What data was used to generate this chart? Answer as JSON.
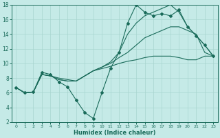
{
  "title": "",
  "xlabel": "Humidex (Indice chaleur)",
  "bg_color": "#c5eae7",
  "grid_color": "#a8d5d0",
  "line_color": "#1a6b5a",
  "xlim": [
    -0.5,
    23.5
  ],
  "ylim": [
    2,
    18
  ],
  "xticks": [
    0,
    1,
    2,
    3,
    4,
    5,
    6,
    7,
    8,
    9,
    10,
    11,
    12,
    13,
    14,
    15,
    16,
    17,
    18,
    19,
    20,
    21,
    22,
    23
  ],
  "yticks": [
    2,
    4,
    6,
    8,
    10,
    12,
    14,
    16,
    18
  ],
  "line1_x": [
    0,
    1,
    2,
    3,
    4,
    5,
    6,
    7,
    8,
    9,
    10,
    11,
    12,
    13,
    14,
    15,
    16,
    17,
    18,
    19,
    20,
    21,
    22,
    23
  ],
  "line1_y": [
    6.7,
    6.0,
    6.1,
    8.8,
    8.5,
    7.5,
    6.8,
    5.0,
    3.3,
    2.5,
    6.0,
    9.3,
    11.5,
    15.5,
    18.0,
    17.0,
    16.5,
    16.8,
    16.5,
    17.3,
    15.0,
    13.8,
    12.5,
    11.0
  ],
  "line2_x": [
    0,
    1,
    2,
    3,
    4,
    5,
    6,
    7,
    8,
    9,
    10,
    11,
    12,
    13,
    14,
    15,
    16,
    17,
    18,
    19,
    20,
    21,
    22,
    23
  ],
  "line2_y": [
    6.7,
    6.0,
    6.1,
    8.5,
    8.3,
    8.0,
    7.8,
    7.6,
    8.3,
    9.0,
    9.5,
    10.2,
    11.5,
    14.0,
    15.5,
    16.5,
    17.0,
    17.5,
    18.0,
    17.0,
    15.0,
    13.8,
    12.5,
    11.0
  ],
  "line3_x": [
    0,
    1,
    2,
    3,
    4,
    5,
    6,
    7,
    8,
    9,
    10,
    11,
    12,
    13,
    14,
    15,
    16,
    17,
    18,
    19,
    20,
    21,
    22,
    23
  ],
  "line3_y": [
    6.7,
    6.0,
    6.1,
    8.5,
    8.3,
    7.8,
    7.6,
    7.6,
    8.3,
    9.0,
    9.5,
    10.0,
    10.8,
    11.5,
    12.5,
    13.5,
    14.0,
    14.5,
    15.0,
    15.0,
    14.5,
    14.0,
    11.5,
    11.0
  ],
  "line4_x": [
    0,
    1,
    2,
    3,
    4,
    5,
    6,
    7,
    8,
    9,
    10,
    11,
    12,
    13,
    14,
    15,
    16,
    17,
    18,
    19,
    20,
    21,
    22,
    23
  ],
  "line4_y": [
    6.7,
    6.0,
    6.1,
    8.5,
    8.3,
    7.8,
    7.6,
    7.6,
    8.3,
    9.0,
    9.3,
    9.6,
    10.0,
    10.3,
    10.5,
    10.8,
    11.0,
    11.0,
    11.0,
    10.8,
    10.5,
    10.5,
    11.0,
    11.0
  ]
}
